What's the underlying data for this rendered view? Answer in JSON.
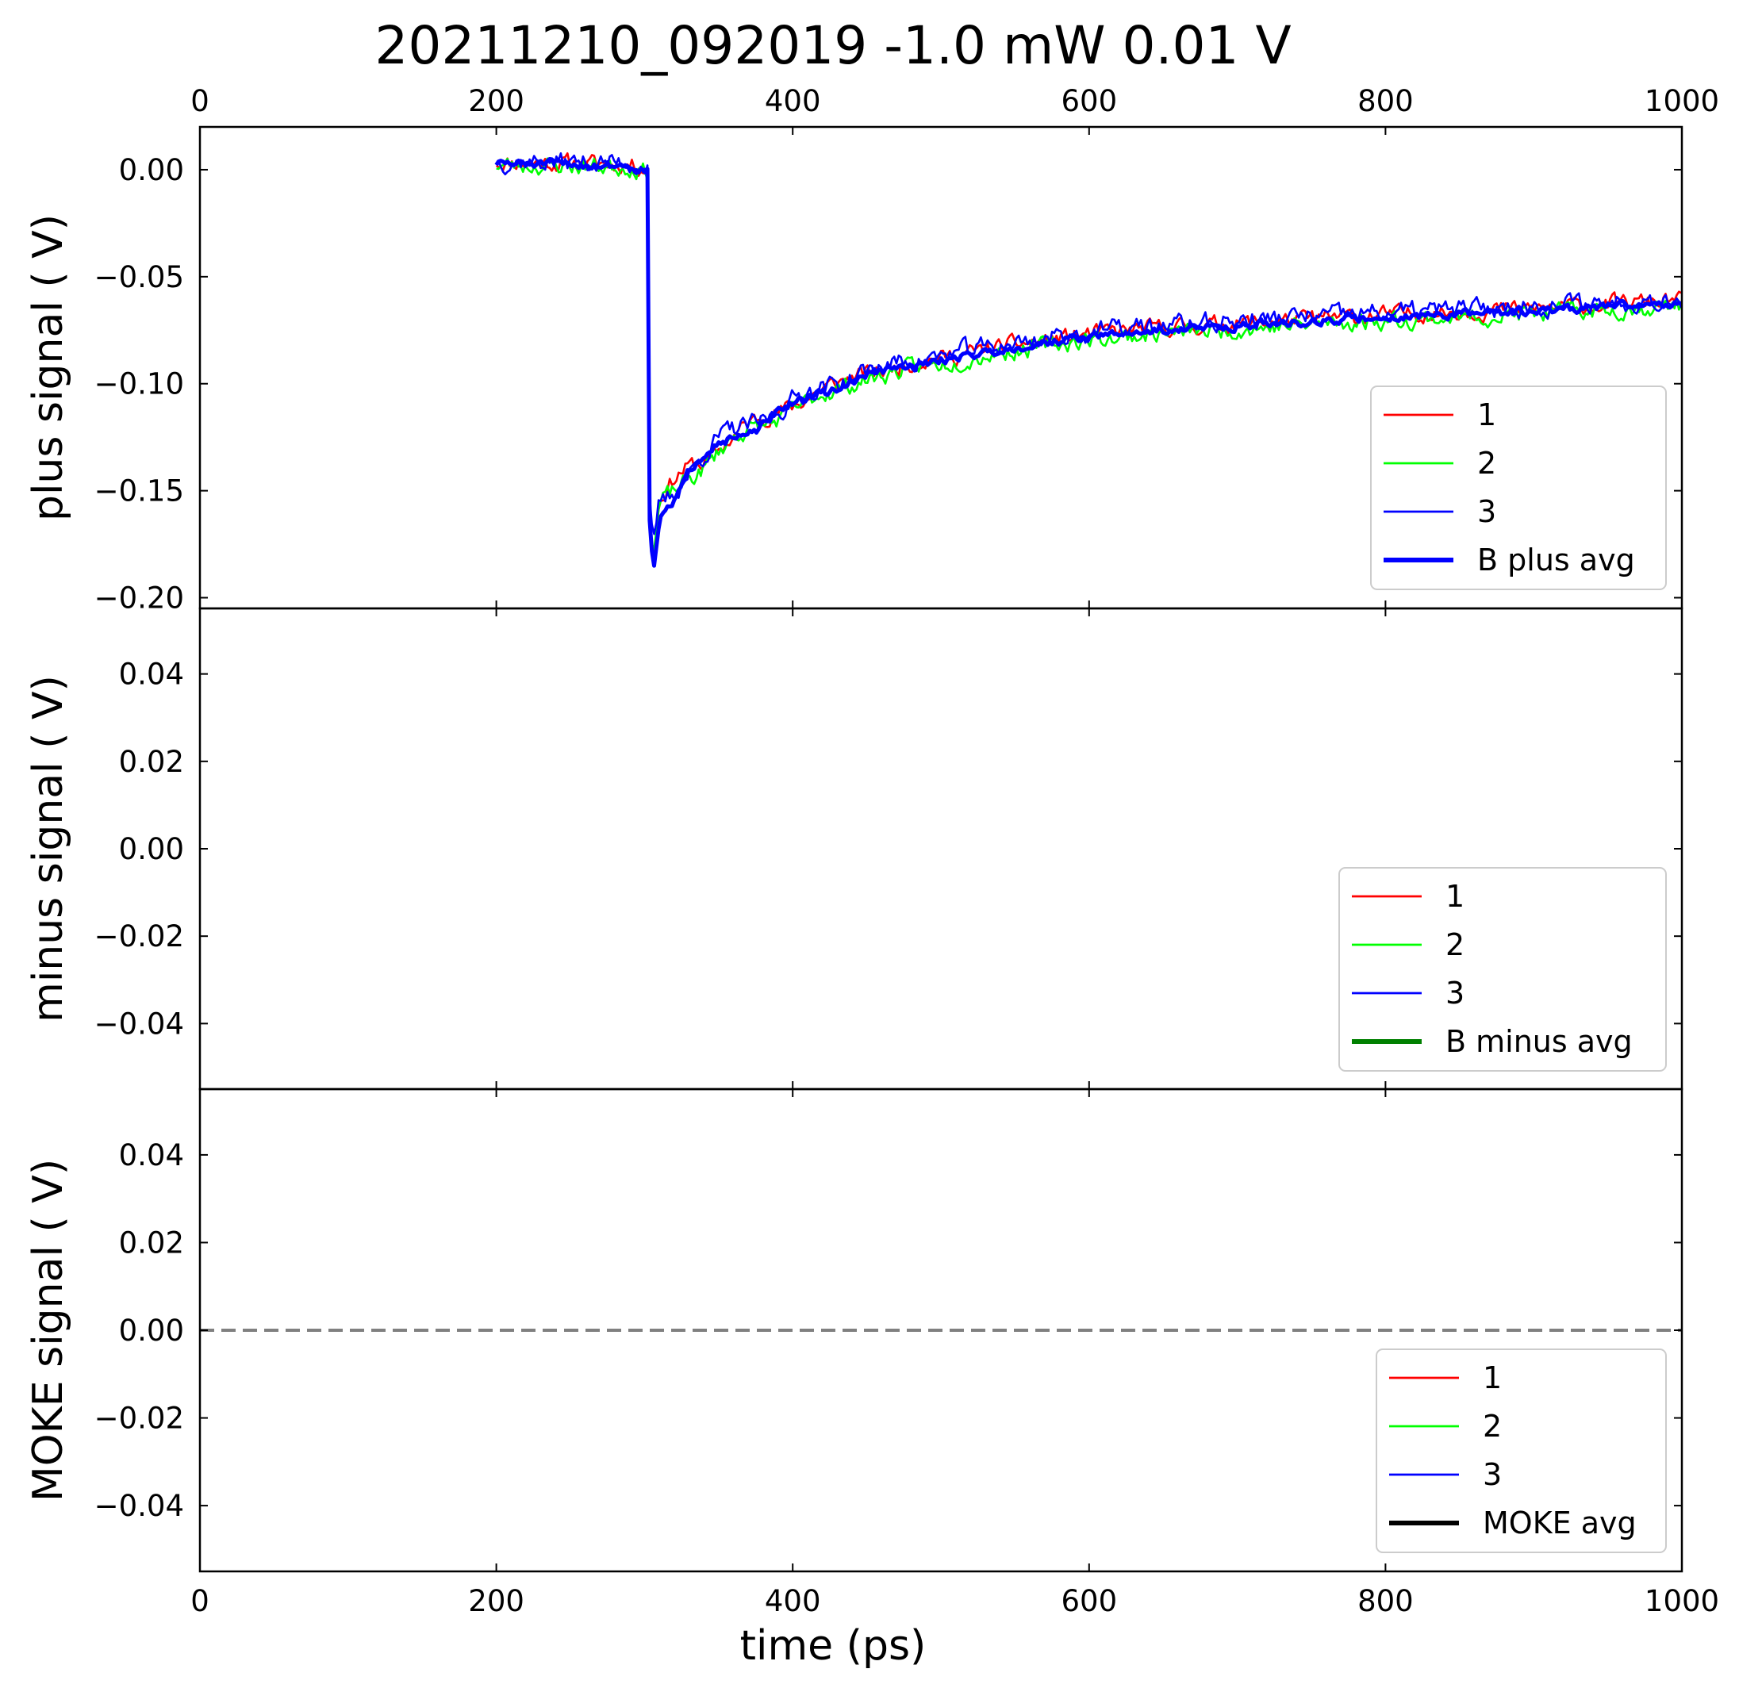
{
  "figure": {
    "title": "20211210_092019    -1.0 mW    0.01 V",
    "xlabel": "time (ps)"
  },
  "chart_data": [
    {
      "type": "line",
      "panel": "top",
      "ylabel": "plus signal  ( V)",
      "xlim": [
        0,
        1000
      ],
      "ylim": [
        -0.205,
        0.02
      ],
      "xticks": [
        0,
        200,
        400,
        600,
        800,
        1000
      ],
      "yticks": [
        0.0,
        -0.05,
        -0.1,
        -0.15,
        -0.2
      ],
      "ytick_labels": [
        "0.00",
        "−0.05",
        "−0.10",
        "−0.15",
        "−0.20"
      ],
      "xticks_labeled_top": true,
      "xticks_labeled_bottom": false,
      "legend_position": "lower-right",
      "series": [
        {
          "name": "1",
          "color": "#ff0000",
          "width": "thin",
          "offset": 0.0015,
          "noise": 0.0032,
          "seed": 11
        },
        {
          "name": "2",
          "color": "#00ff00",
          "width": "thin",
          "offset": -0.0018,
          "noise": 0.0034,
          "seed": 23
        },
        {
          "name": "3",
          "color": "#0000ff",
          "width": "thin",
          "offset": 0.0028,
          "noise": 0.0038,
          "seed": 37
        },
        {
          "name": "B plus avg",
          "color": "#0000ff",
          "width": "thick",
          "offset": 0.0,
          "noise": 0.0016,
          "seed": 51
        }
      ],
      "profile": {
        "x": [
          200,
          290,
          302,
          303,
          306,
          310,
          330,
          350,
          400,
          450,
          500,
          550,
          600,
          650,
          700,
          800,
          900,
          1000
        ],
        "y": [
          0.003,
          0.002,
          0.0,
          -0.16,
          -0.185,
          -0.16,
          -0.14,
          -0.13,
          -0.11,
          -0.096,
          -0.089,
          -0.083,
          -0.078,
          -0.075,
          -0.073,
          -0.069,
          -0.066,
          -0.062
        ]
      }
    },
    {
      "type": "line",
      "panel": "middle",
      "ylabel": "minus signal  ( V)",
      "xlim": [
        0,
        1000
      ],
      "ylim": [
        -0.055,
        0.055
      ],
      "xticks": [
        0,
        200,
        400,
        600,
        800,
        1000
      ],
      "yticks": [
        0.04,
        0.02,
        0.0,
        -0.02,
        -0.04
      ],
      "ytick_labels": [
        "0.04",
        "0.02",
        "0.00",
        "−0.02",
        "−0.04"
      ],
      "legend_position": "lower-right",
      "series": [
        {
          "name": "1",
          "color": "#ff0000",
          "width": "thin"
        },
        {
          "name": "2",
          "color": "#00ff00",
          "width": "thin"
        },
        {
          "name": "3",
          "color": "#0000ff",
          "width": "thin"
        },
        {
          "name": "B minus avg",
          "color": "#008000",
          "width": "thick"
        }
      ]
    },
    {
      "type": "line",
      "panel": "bottom",
      "ylabel": "MOKE signal ( V)",
      "xlim": [
        0,
        1000
      ],
      "ylim": [
        -0.055,
        0.055
      ],
      "xticks": [
        0,
        200,
        400,
        600,
        800,
        1000
      ],
      "xtick_labels": [
        "0",
        "200",
        "400",
        "600",
        "800",
        "1000"
      ],
      "yticks": [
        0.04,
        0.02,
        0.0,
        -0.02,
        -0.04
      ],
      "ytick_labels": [
        "0.04",
        "0.02",
        "0.00",
        "−0.02",
        "−0.04"
      ],
      "reference_line": {
        "y": 0.0,
        "style": "dashed",
        "color": "#808080"
      },
      "legend_position": "lower-right",
      "series": [
        {
          "name": "1",
          "color": "#ff0000",
          "width": "thin"
        },
        {
          "name": "2",
          "color": "#00ff00",
          "width": "thin"
        },
        {
          "name": "3",
          "color": "#0000ff",
          "width": "thin"
        },
        {
          "name": "MOKE avg",
          "color": "#000000",
          "width": "thick"
        }
      ]
    }
  ]
}
